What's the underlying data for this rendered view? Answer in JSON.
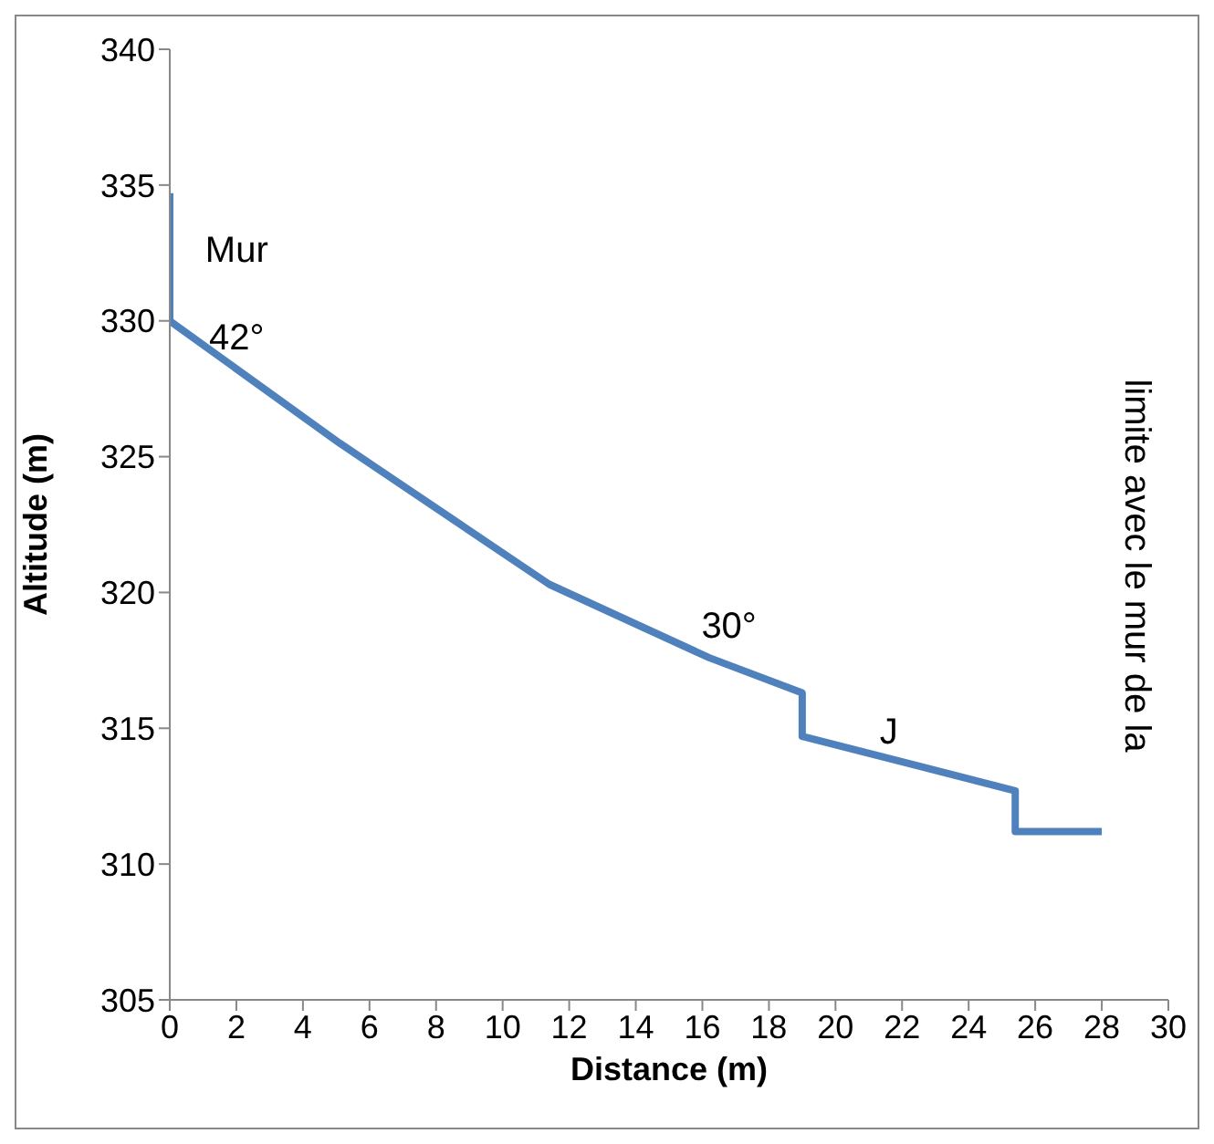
{
  "chart_data": {
    "type": "line",
    "xlabel": "Distance (m)",
    "ylabel": "Altitude (m)",
    "x": [
      0,
      0,
      5.1,
      11.4,
      16.2,
      19,
      19,
      25.4,
      25.4,
      28
    ],
    "series": [
      {
        "color": "#4f81bd",
        "values": [
          334.7,
          330,
          325.5,
          320.3,
          317.6,
          316.3,
          314.7,
          312.7,
          311.2,
          311.2
        ]
      }
    ],
    "xlim": [
      0,
      30
    ],
    "xticks": [
      0,
      2,
      4,
      6,
      8,
      10,
      12,
      14,
      16,
      18,
      20,
      22,
      24,
      26,
      28,
      30
    ],
    "ylim": [
      305,
      340
    ],
    "yticks": [
      305,
      310,
      315,
      320,
      325,
      330,
      335,
      340
    ],
    "grid": false,
    "legend": false,
    "marker": "none",
    "line_style": "solid",
    "annotations": [
      "Mur",
      "42°",
      "30°",
      "J",
      "limite avec le mur de la"
    ]
  }
}
